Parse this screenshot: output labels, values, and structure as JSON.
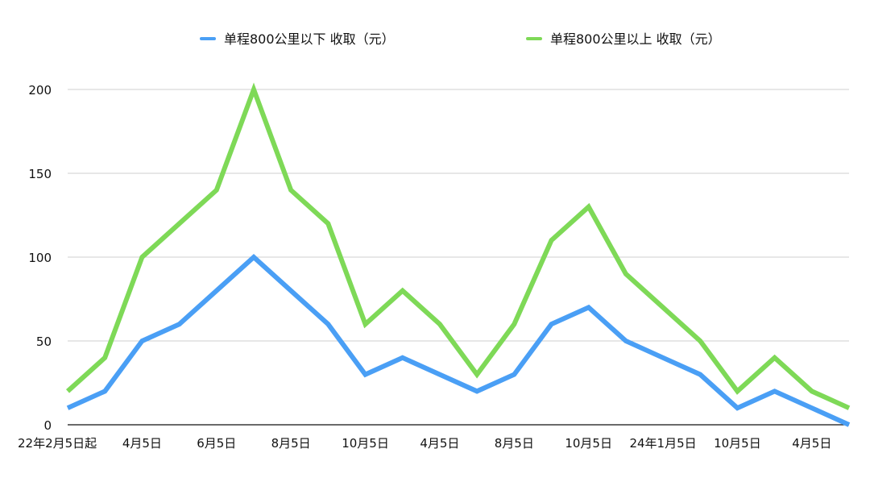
{
  "chart_data": {
    "type": "line",
    "categories": [
      "22年2月5日起",
      "",
      "4月5日",
      "",
      "6月5日",
      "",
      "8月5日",
      "",
      "10月5日",
      "",
      "4月5日",
      "",
      "8月5日",
      "",
      "10月5日",
      "",
      "24年1月5日",
      "",
      "10月5日",
      "",
      "4月5日",
      ""
    ],
    "series": [
      {
        "name": "单程800公里以下 收取（元）",
        "color": "#4a9ff5",
        "values": [
          10,
          20,
          50,
          60,
          80,
          100,
          80,
          60,
          30,
          40,
          30,
          20,
          30,
          60,
          70,
          50,
          40,
          30,
          10,
          20,
          10,
          0
        ]
      },
      {
        "name": "单程800公里以上 收取（元）",
        "color": "#7ed957",
        "values": [
          20,
          40,
          100,
          120,
          140,
          200,
          140,
          120,
          60,
          80,
          60,
          30,
          60,
          110,
          130,
          90,
          70,
          50,
          20,
          40,
          20,
          10
        ]
      }
    ],
    "ylim": [
      0,
      200
    ],
    "yticks": [
      0,
      50,
      100,
      150,
      200
    ],
    "grid": true,
    "legend": "top-center"
  }
}
